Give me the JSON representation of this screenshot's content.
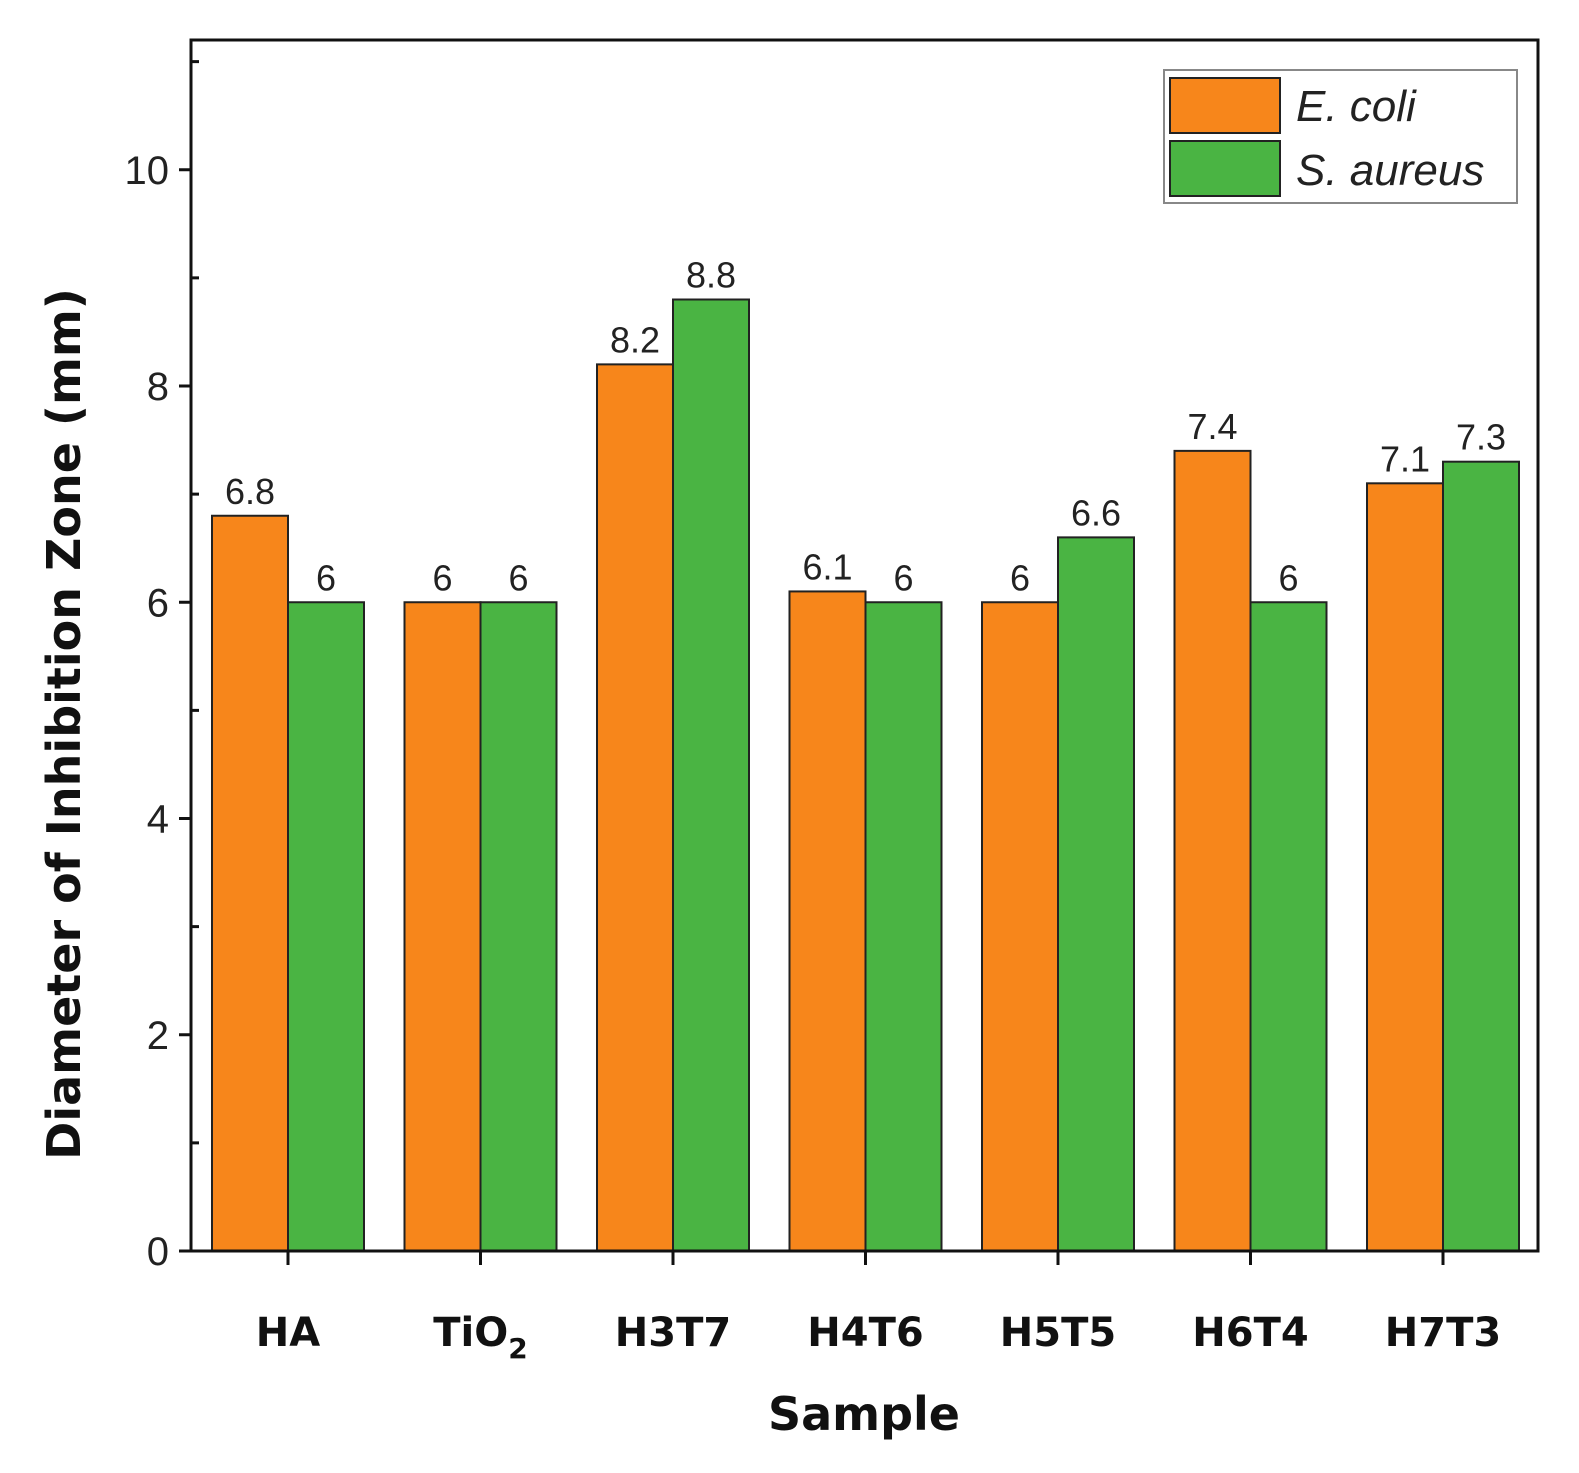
{
  "chart_data": {
    "type": "bar",
    "title": "",
    "xlabel": "Sample",
    "ylabel": "Diameter of Inhibition Zone (mm)",
    "ylim": [
      0,
      11.2
    ],
    "y_ticks": [
      0,
      2,
      4,
      6,
      8,
      10
    ],
    "grid": false,
    "legend_position": "top-right",
    "categories": [
      {
        "base": "HA",
        "sub": ""
      },
      {
        "base": "TiO",
        "sub": "2"
      },
      {
        "base": "H3T7",
        "sub": ""
      },
      {
        "base": "H4T6",
        "sub": ""
      },
      {
        "base": "H5T5",
        "sub": ""
      },
      {
        "base": "H6T4",
        "sub": ""
      },
      {
        "base": "H7T3",
        "sub": ""
      }
    ],
    "series": [
      {
        "name": "E. coli",
        "color": "#F7861B",
        "values": [
          6.8,
          6,
          8.2,
          6.1,
          6,
          7.4,
          7.1
        ],
        "labels": [
          "6.8",
          "6",
          "8.2",
          "6.1",
          "6",
          "7.4",
          "7.1"
        ]
      },
      {
        "name": "S. aureus",
        "color": "#4AB443",
        "values": [
          6,
          6,
          8.8,
          6,
          6.6,
          6,
          7.3
        ],
        "labels": [
          "6",
          "6",
          "8.8",
          "6",
          "6.6",
          "6",
          "7.3"
        ]
      }
    ]
  }
}
